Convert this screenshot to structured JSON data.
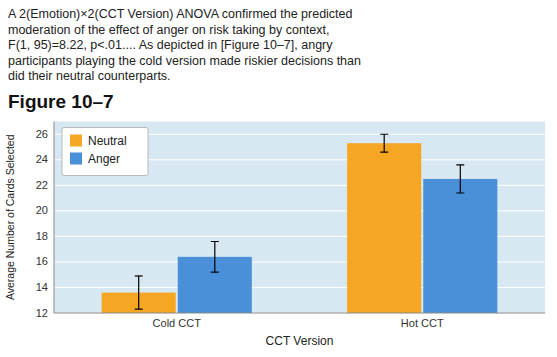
{
  "chart_data": {
    "type": "bar",
    "title": "Figure 10–7",
    "annotations": [
      "A 2(Emotion)×2(CCT Version)  ANOVA confirmed the predicted",
      "moderation of the effect of anger on risk taking by context,",
      "F(1, 95)=8.22, p<.01....  As depicted in [Figure 10–7], angry",
      "participants playing the cold version made riskier decisions than",
      "did their neutral counterparts."
    ],
    "categories": [
      "Cold CCT",
      "Hot CCT"
    ],
    "x_label": "CCT Version",
    "y_label": "Average Number of Cards Selected",
    "series": [
      {
        "name": "Neutral",
        "color": "#f5a623",
        "values": [
          13.6,
          25.3
        ],
        "errors": [
          1.3,
          0.7
        ]
      },
      {
        "name": "Anger",
        "color": "#4a90d9",
        "values": [
          16.4,
          22.5
        ],
        "errors": [
          1.2,
          1.1
        ]
      }
    ],
    "ylim": [
      12,
      27
    ],
    "yticks": [
      12,
      14,
      16,
      18,
      20,
      22,
      24,
      26
    ],
    "grid": true,
    "legend": "upper left"
  }
}
